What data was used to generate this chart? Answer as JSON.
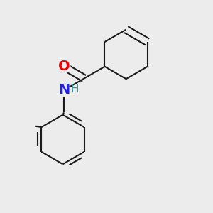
{
  "background_color": "#ececec",
  "bond_color": "#1a1a1a",
  "bond_width": 1.5,
  "O_color": "#ee0000",
  "N_color": "#2020dd",
  "H_color": "#339999",
  "font_size_N": 14,
  "font_size_O": 14,
  "font_size_H": 11,
  "fig_width": 3.0,
  "fig_height": 3.0,
  "dpi": 100,
  "xlim": [
    -0.1,
    1.0
  ],
  "ylim": [
    -0.85,
    0.75
  ]
}
